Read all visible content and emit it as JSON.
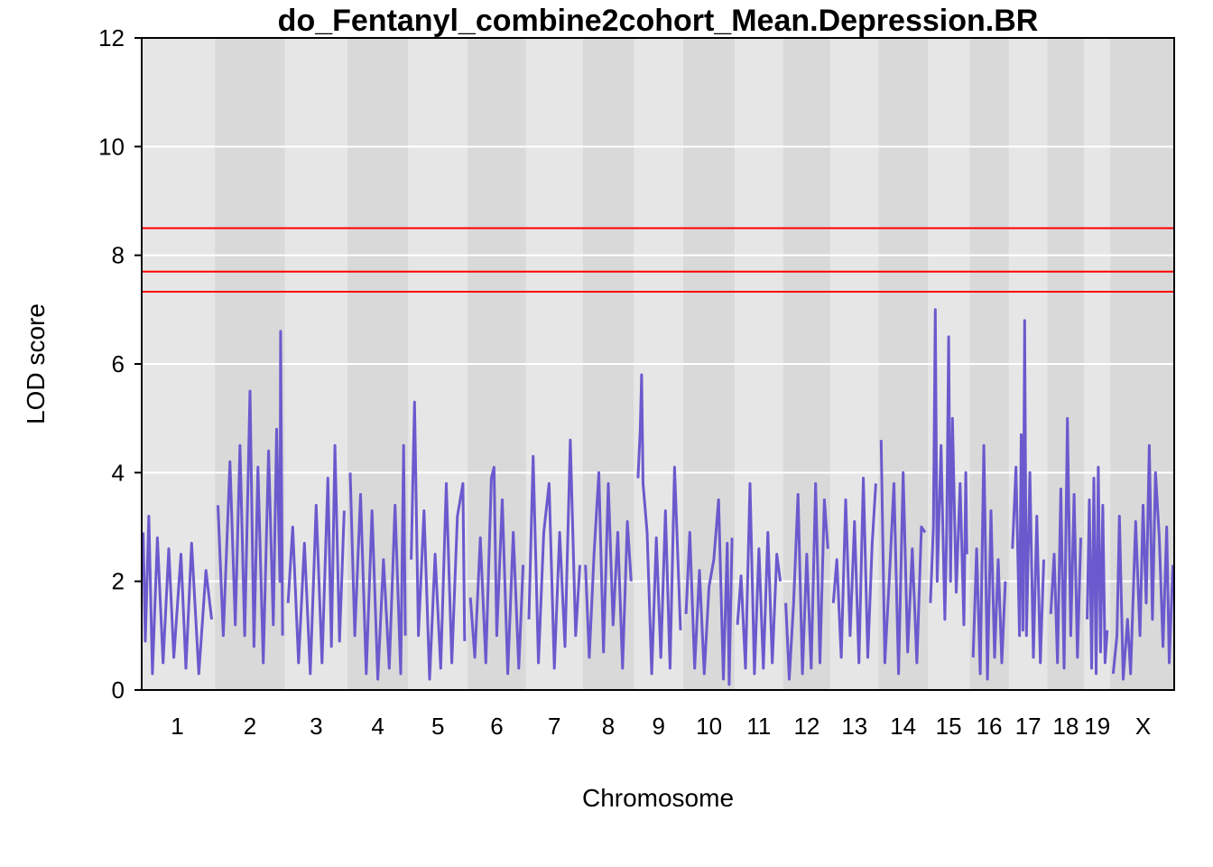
{
  "chart_data": {
    "type": "line",
    "title": "do_Fentanyl_combine2cohort_Mean.Depression.BR",
    "xlabel": "Chromosome",
    "ylabel": "LOD score",
    "ylim": [
      0,
      12
    ],
    "yticks": [
      "0",
      "2",
      "4",
      "6",
      "8",
      "10",
      "12"
    ],
    "y_tick_values": [
      0,
      2,
      4,
      6,
      8,
      10,
      12
    ],
    "grid": "horizontal",
    "background_bands": "alternating grey per chromosome",
    "line_color": "#6a5acd",
    "threshold_color": "#ff0000",
    "thresholds": [
      8.5,
      7.7,
      7.33
    ],
    "chromosomes": [
      {
        "label": "1",
        "length": 195
      },
      {
        "label": "2",
        "length": 182
      },
      {
        "label": "3",
        "length": 160
      },
      {
        "label": "4",
        "length": 157
      },
      {
        "label": "5",
        "length": 152
      },
      {
        "label": "6",
        "length": 150
      },
      {
        "label": "7",
        "length": 145
      },
      {
        "label": "8",
        "length": 130
      },
      {
        "label": "9",
        "length": 125
      },
      {
        "label": "10",
        "length": 131
      },
      {
        "label": "11",
        "length": 122
      },
      {
        "label": "12",
        "length": 120
      },
      {
        "label": "13",
        "length": 121
      },
      {
        "label": "14",
        "length": 125
      },
      {
        "label": "15",
        "length": 104
      },
      {
        "label": "16",
        "length": 98
      },
      {
        "label": "17",
        "length": 95
      },
      {
        "label": "18",
        "length": 91
      },
      {
        "label": "19",
        "length": 61
      },
      {
        "label": "X",
        "length": 170
      }
    ],
    "series": [
      {
        "values_by_chromosome": [
          [
            [
              0.02,
              2.9
            ],
            [
              0.05,
              0.9
            ],
            [
              0.1,
              3.2
            ],
            [
              0.15,
              0.3
            ],
            [
              0.22,
              2.8
            ],
            [
              0.3,
              0.5
            ],
            [
              0.38,
              2.6
            ],
            [
              0.45,
              0.6
            ],
            [
              0.55,
              2.5
            ],
            [
              0.62,
              0.4
            ],
            [
              0.7,
              2.7
            ],
            [
              0.8,
              0.3
            ],
            [
              0.9,
              2.2
            ],
            [
              0.98,
              1.3
            ]
          ],
          [
            [
              0.02,
              3.4
            ],
            [
              0.1,
              1.0
            ],
            [
              0.2,
              4.2
            ],
            [
              0.28,
              1.2
            ],
            [
              0.35,
              4.5
            ],
            [
              0.42,
              1.0
            ],
            [
              0.5,
              5.5
            ],
            [
              0.56,
              0.8
            ],
            [
              0.62,
              4.1
            ],
            [
              0.7,
              0.5
            ],
            [
              0.78,
              4.4
            ],
            [
              0.85,
              1.2
            ],
            [
              0.9,
              4.8
            ],
            [
              0.95,
              2.0
            ],
            [
              0.96,
              6.6
            ],
            [
              0.99,
              1.0
            ]
          ],
          [
            [
              0.02,
              1.6
            ],
            [
              0.1,
              3.0
            ],
            [
              0.2,
              0.5
            ],
            [
              0.3,
              2.7
            ],
            [
              0.4,
              0.3
            ],
            [
              0.5,
              3.4
            ],
            [
              0.6,
              0.5
            ],
            [
              0.7,
              3.9
            ],
            [
              0.76,
              0.8
            ],
            [
              0.82,
              4.5
            ],
            [
              0.9,
              0.9
            ],
            [
              0.98,
              3.3
            ]
          ],
          [
            [
              0.02,
              4.0
            ],
            [
              0.1,
              1.0
            ],
            [
              0.2,
              3.6
            ],
            [
              0.3,
              0.3
            ],
            [
              0.4,
              3.3
            ],
            [
              0.5,
              0.2
            ],
            [
              0.6,
              2.4
            ],
            [
              0.7,
              0.4
            ],
            [
              0.8,
              3.4
            ],
            [
              0.9,
              0.3
            ],
            [
              0.95,
              4.5
            ],
            [
              0.98,
              1.0
            ]
          ],
          [
            [
              0.02,
              2.4
            ],
            [
              0.08,
              5.3
            ],
            [
              0.15,
              1.0
            ],
            [
              0.25,
              3.3
            ],
            [
              0.35,
              0.2
            ],
            [
              0.45,
              2.5
            ],
            [
              0.55,
              0.4
            ],
            [
              0.65,
              3.8
            ],
            [
              0.75,
              0.5
            ],
            [
              0.85,
              3.2
            ],
            [
              0.95,
              3.8
            ],
            [
              0.98,
              0.9
            ]
          ],
          [
            [
              0.02,
              1.7
            ],
            [
              0.1,
              0.6
            ],
            [
              0.2,
              2.8
            ],
            [
              0.3,
              0.5
            ],
            [
              0.4,
              3.9
            ],
            [
              0.45,
              4.1
            ],
            [
              0.5,
              1.0
            ],
            [
              0.6,
              3.5
            ],
            [
              0.7,
              0.3
            ],
            [
              0.8,
              2.9
            ],
            [
              0.9,
              0.4
            ],
            [
              0.98,
              2.3
            ]
          ],
          [
            [
              0.02,
              1.3
            ],
            [
              0.1,
              4.3
            ],
            [
              0.2,
              0.5
            ],
            [
              0.3,
              2.9
            ],
            [
              0.4,
              3.8
            ],
            [
              0.5,
              0.4
            ],
            [
              0.6,
              2.9
            ],
            [
              0.7,
              0.8
            ],
            [
              0.8,
              4.6
            ],
            [
              0.9,
              1.0
            ],
            [
              0.98,
              2.3
            ]
          ],
          [
            [
              0.02,
              2.3
            ],
            [
              0.1,
              0.6
            ],
            [
              0.2,
              2.5
            ],
            [
              0.3,
              4.0
            ],
            [
              0.4,
              0.7
            ],
            [
              0.5,
              3.8
            ],
            [
              0.6,
              1.2
            ],
            [
              0.7,
              2.9
            ],
            [
              0.8,
              0.4
            ],
            [
              0.9,
              3.1
            ],
            [
              0.98,
              2.0
            ]
          ],
          [
            [
              0.05,
              3.9
            ],
            [
              0.1,
              4.8
            ],
            [
              0.13,
              5.8
            ],
            [
              0.16,
              3.8
            ],
            [
              0.25,
              2.9
            ],
            [
              0.35,
              0.3
            ],
            [
              0.45,
              2.8
            ],
            [
              0.55,
              0.6
            ],
            [
              0.65,
              3.3
            ],
            [
              0.75,
              0.4
            ],
            [
              0.85,
              4.1
            ],
            [
              0.98,
              1.1
            ]
          ],
          [
            [
              0.02,
              1.4
            ],
            [
              0.1,
              2.9
            ],
            [
              0.2,
              0.4
            ],
            [
              0.3,
              2.2
            ],
            [
              0.4,
              0.3
            ],
            [
              0.5,
              1.9
            ],
            [
              0.6,
              2.4
            ],
            [
              0.7,
              3.5
            ],
            [
              0.8,
              0.2
            ],
            [
              0.88,
              2.7
            ],
            [
              0.92,
              0.1
            ],
            [
              0.98,
              2.8
            ]
          ],
          [
            [
              0.02,
              1.2
            ],
            [
              0.1,
              2.1
            ],
            [
              0.2,
              0.4
            ],
            [
              0.3,
              3.8
            ],
            [
              0.4,
              0.3
            ],
            [
              0.5,
              2.6
            ],
            [
              0.6,
              0.4
            ],
            [
              0.7,
              2.9
            ],
            [
              0.8,
              0.5
            ],
            [
              0.9,
              2.5
            ],
            [
              0.98,
              2.0
            ]
          ],
          [
            [
              0.02,
              1.6
            ],
            [
              0.1,
              0.2
            ],
            [
              0.2,
              1.6
            ],
            [
              0.3,
              3.6
            ],
            [
              0.4,
              0.3
            ],
            [
              0.5,
              2.5
            ],
            [
              0.6,
              0.4
            ],
            [
              0.7,
              3.8
            ],
            [
              0.8,
              0.5
            ],
            [
              0.9,
              3.5
            ],
            [
              0.98,
              2.6
            ]
          ],
          [
            [
              0.02,
              1.6
            ],
            [
              0.1,
              2.4
            ],
            [
              0.2,
              0.6
            ],
            [
              0.3,
              3.5
            ],
            [
              0.4,
              1.0
            ],
            [
              0.5,
              3.1
            ],
            [
              0.6,
              0.5
            ],
            [
              0.7,
              3.9
            ],
            [
              0.8,
              0.6
            ],
            [
              0.9,
              2.7
            ],
            [
              0.98,
              3.8
            ]
          ],
          [
            [
              0.02,
              4.6
            ],
            [
              0.1,
              0.5
            ],
            [
              0.2,
              2.1
            ],
            [
              0.3,
              3.8
            ],
            [
              0.4,
              0.3
            ],
            [
              0.5,
              4.0
            ],
            [
              0.6,
              0.7
            ],
            [
              0.7,
              2.6
            ],
            [
              0.8,
              0.5
            ],
            [
              0.9,
              3.0
            ],
            [
              0.98,
              2.9
            ]
          ],
          [
            [
              0.02,
              1.6
            ],
            [
              0.1,
              3.0
            ],
            [
              0.15,
              7.0
            ],
            [
              0.2,
              2.0
            ],
            [
              0.3,
              4.5
            ],
            [
              0.4,
              1.3
            ],
            [
              0.45,
              3.0
            ],
            [
              0.5,
              6.5
            ],
            [
              0.55,
              2.0
            ],
            [
              0.6,
              5.0
            ],
            [
              0.7,
              1.8
            ],
            [
              0.8,
              3.8
            ],
            [
              0.9,
              1.2
            ],
            [
              0.95,
              4.0
            ],
            [
              0.98,
              2.5
            ]
          ],
          [
            [
              0.05,
              0.6
            ],
            [
              0.15,
              2.6
            ],
            [
              0.25,
              0.3
            ],
            [
              0.35,
              4.5
            ],
            [
              0.45,
              0.2
            ],
            [
              0.55,
              3.3
            ],
            [
              0.65,
              0.6
            ],
            [
              0.75,
              2.4
            ],
            [
              0.85,
              0.5
            ],
            [
              0.95,
              2.0
            ]
          ],
          [
            [
              0.05,
              2.6
            ],
            [
              0.15,
              4.1
            ],
            [
              0.25,
              1.0
            ],
            [
              0.3,
              4.7
            ],
            [
              0.35,
              1.1
            ],
            [
              0.4,
              6.8
            ],
            [
              0.45,
              1.0
            ],
            [
              0.55,
              4.0
            ],
            [
              0.65,
              0.6
            ],
            [
              0.75,
              3.2
            ],
            [
              0.85,
              0.5
            ],
            [
              0.95,
              2.4
            ]
          ],
          [
            [
              0.05,
              1.4
            ],
            [
              0.15,
              2.5
            ],
            [
              0.25,
              0.5
            ],
            [
              0.35,
              3.7
            ],
            [
              0.45,
              0.4
            ],
            [
              0.55,
              5.0
            ],
            [
              0.65,
              1.0
            ],
            [
              0.75,
              3.6
            ],
            [
              0.85,
              0.6
            ],
            [
              0.95,
              2.8
            ]
          ],
          [
            [
              0.05,
              1.3
            ],
            [
              0.15,
              3.5
            ],
            [
              0.25,
              0.4
            ],
            [
              0.35,
              3.9
            ],
            [
              0.45,
              0.3
            ],
            [
              0.55,
              4.1
            ],
            [
              0.65,
              0.7
            ],
            [
              0.75,
              3.4
            ],
            [
              0.85,
              0.5
            ],
            [
              0.95,
              1.1
            ]
          ],
          [
            [
              0.02,
              0.3
            ],
            [
              0.08,
              1.0
            ],
            [
              0.12,
              3.2
            ],
            [
              0.18,
              0.2
            ],
            [
              0.25,
              1.3
            ],
            [
              0.3,
              0.3
            ],
            [
              0.38,
              3.1
            ],
            [
              0.45,
              1.0
            ],
            [
              0.5,
              3.4
            ],
            [
              0.55,
              1.6
            ],
            [
              0.6,
              4.5
            ],
            [
              0.65,
              1.3
            ],
            [
              0.7,
              4.0
            ],
            [
              0.76,
              2.8
            ],
            [
              0.82,
              0.8
            ],
            [
              0.88,
              3.0
            ],
            [
              0.92,
              0.5
            ],
            [
              0.98,
              2.3
            ]
          ]
        ]
      }
    ]
  }
}
